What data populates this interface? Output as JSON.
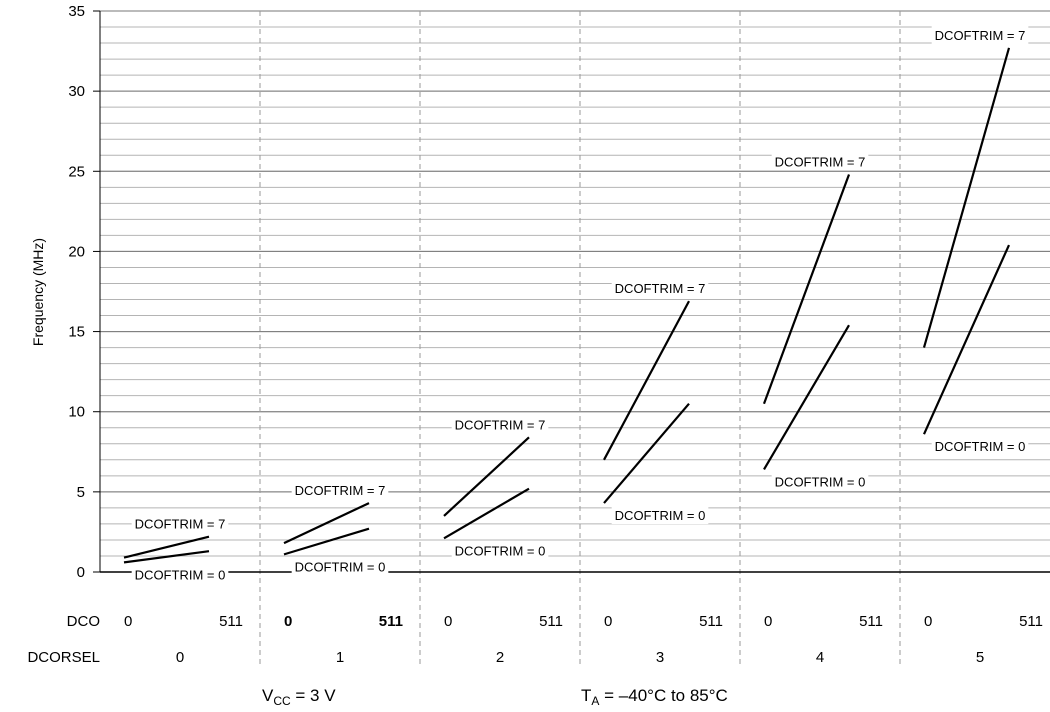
{
  "chart_data": {
    "type": "line",
    "title": "",
    "xlabel": "",
    "ylabel": "Frequency (MHz)",
    "ylim": [
      0,
      35
    ],
    "yticks": [
      0,
      5,
      10,
      15,
      20,
      25,
      30,
      35
    ],
    "grid": true,
    "row_labels": {
      "dco": "DCO",
      "dcorsel": "DCORSEL"
    },
    "dco_range": [
      "0",
      "511"
    ],
    "conditions": {
      "vcc": {
        "main": "V",
        "sub": "CC",
        "rest": " = 3 V"
      },
      "ta": {
        "main": "T",
        "sub": "A",
        "rest": " = –40°C to 85°C"
      }
    },
    "groups": [
      {
        "dcorsel": "0",
        "series": [
          {
            "name": "DCOFTRIM = 7",
            "x": [
              0,
              511
            ],
            "y": [
              0.9,
              2.2
            ]
          },
          {
            "name": "DCOFTRIM = 0",
            "x": [
              0,
              511
            ],
            "y": [
              0.6,
              1.3
            ]
          }
        ]
      },
      {
        "dcorsel": "1",
        "series": [
          {
            "name": "DCOFTRIM = 7",
            "x": [
              0,
              511
            ],
            "y": [
              1.8,
              4.3
            ]
          },
          {
            "name": "DCOFTRIM = 0",
            "x": [
              0,
              511
            ],
            "y": [
              1.1,
              2.7
            ]
          }
        ]
      },
      {
        "dcorsel": "2",
        "series": [
          {
            "name": "DCOFTRIM = 7",
            "x": [
              0,
              511
            ],
            "y": [
              3.5,
              8.4
            ]
          },
          {
            "name": "DCOFTRIM = 0",
            "x": [
              0,
              511
            ],
            "y": [
              2.1,
              5.2
            ]
          }
        ]
      },
      {
        "dcorsel": "3",
        "series": [
          {
            "name": "DCOFTRIM = 7",
            "x": [
              0,
              511
            ],
            "y": [
              7.0,
              16.9
            ]
          },
          {
            "name": "DCOFTRIM = 0",
            "x": [
              0,
              511
            ],
            "y": [
              4.3,
              10.5
            ]
          }
        ]
      },
      {
        "dcorsel": "4",
        "series": [
          {
            "name": "DCOFTRIM = 7",
            "x": [
              0,
              511
            ],
            "y": [
              10.5,
              24.8
            ]
          },
          {
            "name": "DCOFTRIM = 0",
            "x": [
              0,
              511
            ],
            "y": [
              6.4,
              15.4
            ]
          }
        ]
      },
      {
        "dcorsel": "5",
        "series": [
          {
            "name": "DCOFTRIM = 7",
            "x": [
              0,
              511
            ],
            "y": [
              14.0,
              32.7
            ]
          },
          {
            "name": "DCOFTRIM = 0",
            "x": [
              0,
              511
            ],
            "y": [
              8.6,
              20.4
            ]
          }
        ]
      }
    ]
  }
}
